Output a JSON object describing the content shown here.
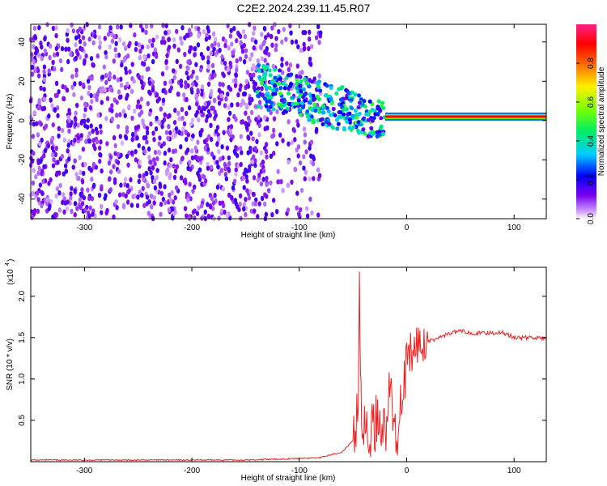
{
  "title": "C2E2.2024.239.11.45.R07",
  "chart_data": [
    {
      "type": "heatmap",
      "xlabel": "Height of straight line (km)",
      "ylabel": "Frequency (Hz)",
      "xlim": [
        -350,
        130
      ],
      "ylim": [
        -50,
        49
      ],
      "xticks": [
        -300,
        -200,
        -100,
        0,
        100
      ],
      "yticks": [
        -40,
        -20,
        0,
        20,
        40
      ],
      "colorbar": {
        "label": "Normalized spectral amplitude",
        "range": [
          0,
          1
        ],
        "ticks": [
          "0.0",
          "0.2",
          "0.4",
          "0.6",
          "0.8"
        ],
        "colormap": "rainbow (white-purple-blue-cyan-green-yellow-red-magenta)"
      },
      "features": [
        {
          "region": "noise",
          "x": [
            -350,
            -80
          ],
          "y": [
            -50,
            49
          ],
          "amplitude": 0.15
        },
        {
          "region": "transition",
          "x": [
            -140,
            -20
          ],
          "center_freq": [
            18,
            0
          ],
          "amplitude": 0.4
        },
        {
          "region": "carrier",
          "x": [
            -20,
            130
          ],
          "y": 2,
          "amplitude": 0.9
        }
      ]
    },
    {
      "type": "line",
      "xlabel": "Height of straight line (km)",
      "ylabel": "SNR (10 * v/v)",
      "yscale_label": "(x10",
      "yscale_exp": "4",
      "xlim": [
        -350,
        130
      ],
      "ylim": [
        0,
        2.35
      ],
      "xticks": [
        -300,
        -200,
        -100,
        0,
        100
      ],
      "yticks": [
        "0.5",
        "1.0",
        "1.5",
        "2.0"
      ],
      "series": [
        {
          "color": "#ee2222",
          "x": [
            -350,
            -250,
            -150,
            -120,
            -80,
            -60,
            -50,
            -45,
            -44,
            -43,
            -42,
            -40,
            -35,
            -30,
            -25,
            -20,
            -15,
            -10,
            -5,
            0,
            5,
            10,
            20,
            30,
            40,
            50,
            60,
            70,
            80,
            90,
            100,
            110,
            120,
            130
          ],
          "y": [
            0.02,
            0.02,
            0.02,
            0.03,
            0.05,
            0.12,
            0.25,
            0.7,
            2.35,
            1.0,
            0.6,
            0.35,
            0.3,
            0.45,
            0.55,
            0.35,
            0.9,
            0.2,
            0.85,
            1.1,
            1.3,
            1.4,
            1.45,
            1.5,
            1.55,
            1.58,
            1.56,
            1.55,
            1.56,
            1.56,
            1.5,
            1.5,
            1.5,
            1.48
          ]
        }
      ]
    }
  ]
}
